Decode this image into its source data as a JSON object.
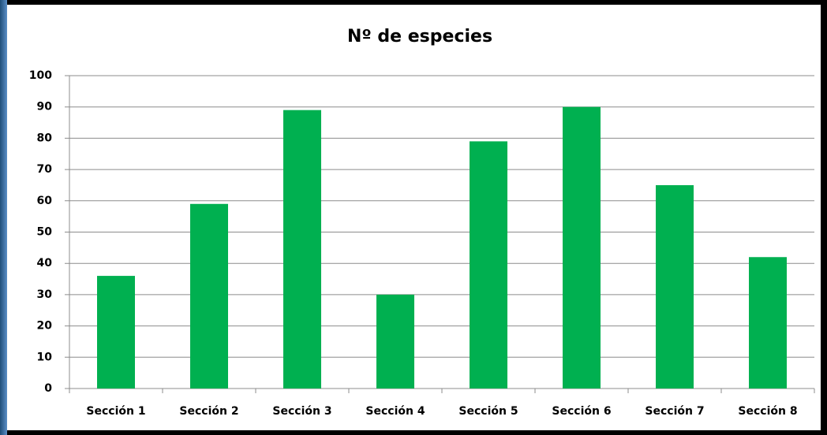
{
  "chart_data": {
    "type": "bar",
    "title": "Nº de especies",
    "categories": [
      "Sección 1",
      "Sección 2",
      "Sección 3",
      "Sección 4",
      "Sección 5",
      "Sección 6",
      "Sección 7",
      "Sección 8"
    ],
    "values": [
      36,
      59,
      89,
      30,
      79,
      90,
      65,
      42
    ],
    "color": "#00b050",
    "ylim": [
      0,
      100
    ],
    "yticks": [
      0,
      10,
      20,
      30,
      40,
      50,
      60,
      70,
      80,
      90,
      100
    ],
    "grid": true
  }
}
